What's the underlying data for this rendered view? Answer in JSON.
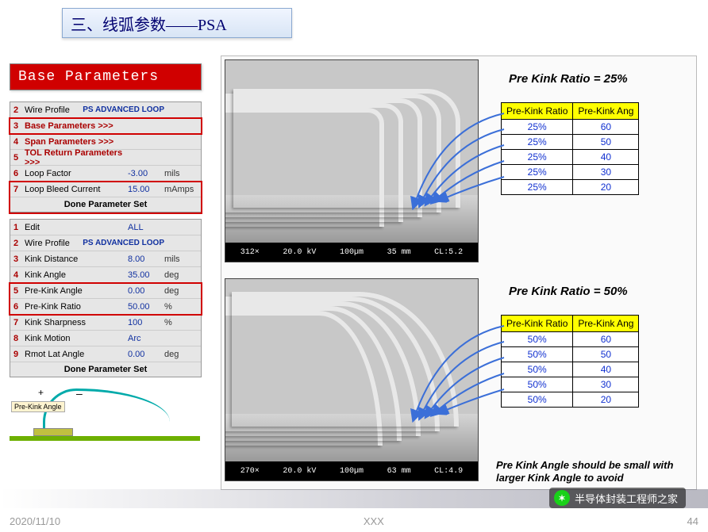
{
  "title": "三、线弧参数——PSA",
  "red_pill": "Base  Parameters",
  "panel1": {
    "rows": [
      {
        "n": "2",
        "label": "Wire Profile",
        "val": "PS ADVANCED LOOP",
        "unit": "",
        "blue": true
      },
      {
        "n": "3",
        "label": "Base Parameters >>>",
        "val": "",
        "unit": "",
        "red": true
      },
      {
        "n": "4",
        "label": "Span Parameters >>>",
        "val": "",
        "unit": "",
        "red": true
      },
      {
        "n": "5",
        "label": "TOL Return Parameters >>>",
        "val": "",
        "unit": "",
        "red": true
      },
      {
        "n": "6",
        "label": "Loop Factor",
        "val": "-3.00",
        "unit": "mils"
      },
      {
        "n": "7",
        "label": "Loop Bleed Current",
        "val": "15.00",
        "unit": "mAmps"
      }
    ],
    "done": "Done Parameter Set"
  },
  "panel2": {
    "rows": [
      {
        "n": "1",
        "label": "Edit",
        "val": "ALL",
        "unit": ""
      },
      {
        "n": "2",
        "label": "Wire Profile",
        "val": "PS ADVANCED LOOP",
        "unit": "",
        "blue": true
      },
      {
        "n": "3",
        "label": "Kink Distance",
        "val": "8.00",
        "unit": "mils"
      },
      {
        "n": "4",
        "label": "Kink Angle",
        "val": "35.00",
        "unit": "deg"
      },
      {
        "n": "5",
        "label": "Pre-Kink Angle",
        "val": "0.00",
        "unit": "deg"
      },
      {
        "n": "6",
        "label": "Pre-Kink Ratio",
        "val": "50.00",
        "unit": "%"
      },
      {
        "n": "7",
        "label": "Kink Sharpness",
        "val": "100",
        "unit": "%"
      },
      {
        "n": "8",
        "label": "Kink Motion",
        "val": "Arc",
        "unit": ""
      },
      {
        "n": "9",
        "label": "Rmot Lat Angle",
        "val": "0.00",
        "unit": "deg"
      }
    ],
    "done": "Done Parameter Set"
  },
  "diagram_label": "Pre-Kink Angle",
  "heading25": "Pre Kink Ratio = 25%",
  "heading50": "Pre Kink Ratio = 50%",
  "note": "Pre Kink Angle should be small with larger Kink Angle to avoid",
  "table_headers": [
    "Pre-Kink Ratio",
    "Pre-Kink Ang"
  ],
  "table25": [
    [
      "25%",
      "60"
    ],
    [
      "25%",
      "50"
    ],
    [
      "25%",
      "40"
    ],
    [
      "25%",
      "30"
    ],
    [
      "25%",
      "20"
    ]
  ],
  "table50": [
    [
      "50%",
      "60"
    ],
    [
      "50%",
      "50"
    ],
    [
      "50%",
      "40"
    ],
    [
      "50%",
      "30"
    ],
    [
      "50%",
      "20"
    ]
  ],
  "sem_top": {
    "mag": "312×",
    "kv": "20.0 kV",
    "scale": "100µm",
    "wd": "35 mm",
    "cl": "CL:5.2"
  },
  "sem_bot": {
    "mag": "270×",
    "kv": "20.0 kV",
    "scale": "100µm",
    "wd": "63 mm",
    "cl": "CL:4.9"
  },
  "footer": {
    "date": "2020/11/10",
    "mid": "XXX",
    "page": "44"
  },
  "watermark": "半导体封装工程师之家",
  "colors": {
    "hl": "#d00000",
    "yellow": "#ffff00",
    "blueval": "#1030d0",
    "arrow": "#3b6fd8"
  }
}
